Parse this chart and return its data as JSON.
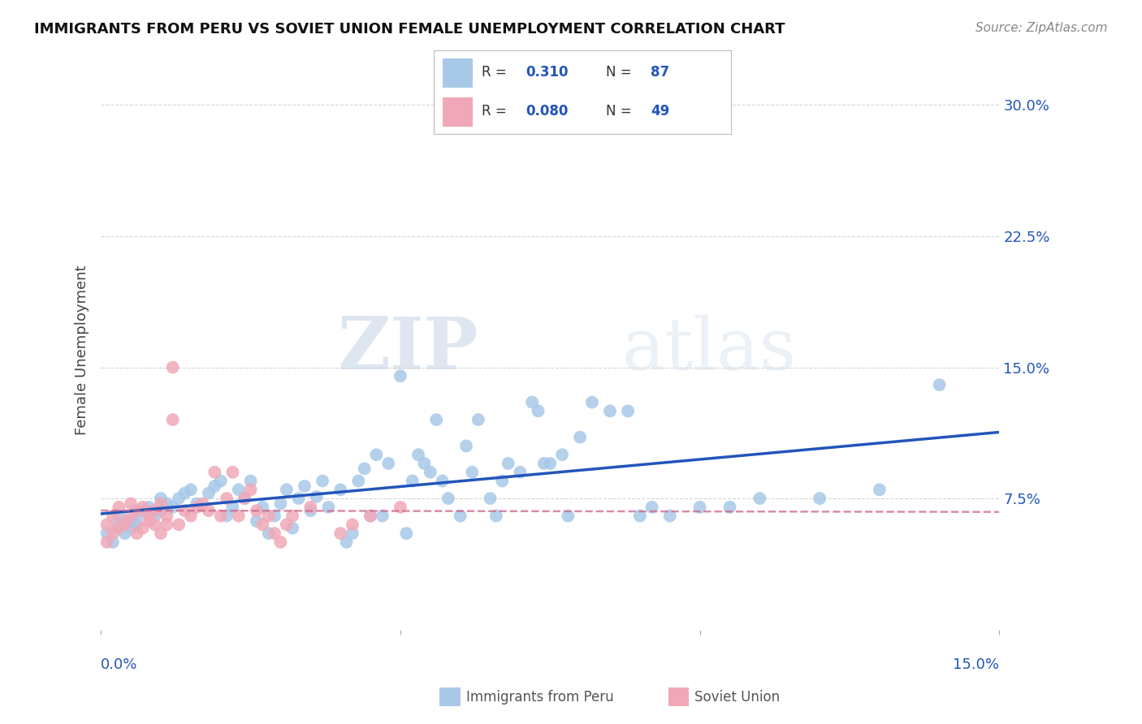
{
  "title": "IMMIGRANTS FROM PERU VS SOVIET UNION FEMALE UNEMPLOYMENT CORRELATION CHART",
  "source": "Source: ZipAtlas.com",
  "ylabel": "Female Unemployment",
  "watermark_zip": "ZIP",
  "watermark_atlas": "atlas",
  "legend_peru_r": "0.310",
  "legend_peru_n": "87",
  "legend_soviet_r": "0.080",
  "legend_soviet_n": "49",
  "peru_color": "#a8c8e8",
  "soviet_color": "#f0a8b8",
  "peru_line_color": "#2255bb",
  "soviet_line_color": "#cc6688",
  "xlim": [
    0.0,
    0.15
  ],
  "ylim": [
    0.0,
    0.32
  ],
  "yticks": [
    0.075,
    0.15,
    0.225,
    0.3
  ],
  "ytick_labels": [
    "7.5%",
    "15.0%",
    "22.5%",
    "30.0%"
  ],
  "peru_x": [
    0.001,
    0.002,
    0.003,
    0.003,
    0.004,
    0.005,
    0.005,
    0.006,
    0.006,
    0.007,
    0.008,
    0.009,
    0.01,
    0.01,
    0.011,
    0.012,
    0.013,
    0.014,
    0.015,
    0.016,
    0.018,
    0.019,
    0.02,
    0.021,
    0.022,
    0.023,
    0.024,
    0.025,
    0.026,
    0.027,
    0.028,
    0.029,
    0.03,
    0.031,
    0.032,
    0.033,
    0.034,
    0.035,
    0.036,
    0.037,
    0.038,
    0.04,
    0.041,
    0.042,
    0.043,
    0.044,
    0.045,
    0.046,
    0.047,
    0.048,
    0.05,
    0.051,
    0.052,
    0.053,
    0.054,
    0.055,
    0.056,
    0.057,
    0.058,
    0.06,
    0.061,
    0.062,
    0.063,
    0.065,
    0.066,
    0.067,
    0.068,
    0.07,
    0.072,
    0.073,
    0.074,
    0.075,
    0.077,
    0.078,
    0.08,
    0.082,
    0.085,
    0.088,
    0.09,
    0.092,
    0.095,
    0.1,
    0.105,
    0.11,
    0.12,
    0.13,
    0.14
  ],
  "peru_y": [
    0.055,
    0.05,
    0.06,
    0.065,
    0.055,
    0.058,
    0.062,
    0.06,
    0.065,
    0.068,
    0.07,
    0.065,
    0.068,
    0.075,
    0.072,
    0.07,
    0.075,
    0.078,
    0.08,
    0.072,
    0.078,
    0.082,
    0.085,
    0.065,
    0.07,
    0.08,
    0.075,
    0.085,
    0.062,
    0.07,
    0.055,
    0.065,
    0.072,
    0.08,
    0.058,
    0.075,
    0.082,
    0.068,
    0.076,
    0.085,
    0.07,
    0.08,
    0.05,
    0.055,
    0.085,
    0.092,
    0.065,
    0.1,
    0.065,
    0.095,
    0.145,
    0.055,
    0.085,
    0.1,
    0.095,
    0.09,
    0.12,
    0.085,
    0.075,
    0.065,
    0.105,
    0.09,
    0.12,
    0.075,
    0.065,
    0.085,
    0.095,
    0.09,
    0.13,
    0.125,
    0.095,
    0.095,
    0.1,
    0.065,
    0.11,
    0.13,
    0.125,
    0.125,
    0.065,
    0.07,
    0.065,
    0.07,
    0.07,
    0.075,
    0.075,
    0.08,
    0.14
  ],
  "soviet_x": [
    0.001,
    0.001,
    0.002,
    0.002,
    0.003,
    0.003,
    0.004,
    0.004,
    0.005,
    0.005,
    0.006,
    0.006,
    0.007,
    0.007,
    0.008,
    0.008,
    0.009,
    0.009,
    0.01,
    0.01,
    0.011,
    0.011,
    0.012,
    0.012,
    0.013,
    0.014,
    0.015,
    0.016,
    0.017,
    0.018,
    0.019,
    0.02,
    0.021,
    0.022,
    0.023,
    0.024,
    0.025,
    0.026,
    0.027,
    0.028,
    0.029,
    0.03,
    0.031,
    0.032,
    0.035,
    0.04,
    0.042,
    0.045,
    0.05
  ],
  "soviet_y": [
    0.05,
    0.06,
    0.055,
    0.065,
    0.058,
    0.07,
    0.062,
    0.06,
    0.065,
    0.072,
    0.055,
    0.068,
    0.058,
    0.07,
    0.062,
    0.065,
    0.06,
    0.068,
    0.072,
    0.055,
    0.06,
    0.065,
    0.15,
    0.12,
    0.06,
    0.068,
    0.065,
    0.07,
    0.072,
    0.068,
    0.09,
    0.065,
    0.075,
    0.09,
    0.065,
    0.075,
    0.08,
    0.068,
    0.06,
    0.065,
    0.055,
    0.05,
    0.06,
    0.065,
    0.07,
    0.055,
    0.06,
    0.065,
    0.07
  ],
  "background_color": "#ffffff",
  "grid_color": "#cccccc",
  "axis_color": "#aaaaaa"
}
